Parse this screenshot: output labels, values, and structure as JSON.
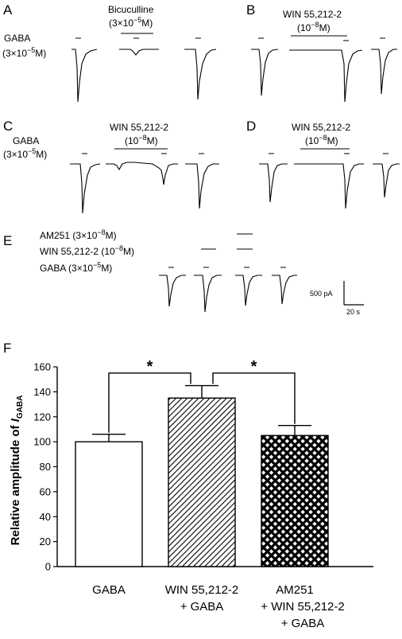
{
  "panels": {
    "a": "A",
    "b": "B",
    "c": "C",
    "d": "D",
    "e": "E",
    "f": "F"
  },
  "a": {
    "gaba_line1": "GABA",
    "gaba_line2": "(3×10",
    "gaba_exp": "−5",
    "gaba_end": "M)",
    "bic_line1": "Bicuculline",
    "bic_line2": "(3×10",
    "bic_exp": "−5",
    "bic_end": "M)"
  },
  "b": {
    "win_line1": "WIN  55,212-2",
    "win_line2": "(10",
    "win_exp": "−8",
    "win_end": "M)"
  },
  "c": {
    "gaba_line1": "GABA",
    "gaba_line2": "(3×10",
    "gaba_exp": "−5",
    "gaba_end": "M)",
    "win_line1": "WIN  55,212-2",
    "win_line2": "(10",
    "win_exp": "−8",
    "win_end": "M)"
  },
  "d": {
    "win_line1": "WIN  55,212-2",
    "win_line2": "(10",
    "win_exp": "−8",
    "win_end": "M)"
  },
  "e": {
    "am251": "AM251 (3×10",
    "am251_exp": "−8",
    "am251_end": "M)",
    "win": "WIN  55,212-2 (10",
    "win_exp": "−8",
    "win_end": "M)",
    "gaba": "GABA (3×10",
    "gaba_exp": "−5",
    "gaba_end": "M)",
    "scale_y": "500 pA",
    "scale_x": "20 s"
  },
  "chart_data": {
    "type": "bar",
    "categories": [
      "GABA",
      "WIN 55,212-2\n+ GABA",
      "AM251\n+ WIN 55,212-2\n+ GABA"
    ],
    "category_lines": [
      [
        "GABA"
      ],
      [
        "WIN 55,212-2",
        "+ GABA"
      ],
      [
        "AM251",
        "+ WIN 55,212-2",
        "+ GABA"
      ]
    ],
    "values": [
      100,
      135,
      105
    ],
    "errors": [
      6,
      10,
      8
    ],
    "fills": [
      "open",
      "diagonal-hatch",
      "crosshatch"
    ],
    "ylabel_main": "Relative amplitude of ",
    "ylabel_italic": "I",
    "ylabel_sub": "GABA",
    "ylim": [
      0,
      160
    ],
    "yticks": [
      0,
      20,
      40,
      60,
      80,
      100,
      120,
      140,
      160
    ],
    "significance": [
      {
        "from": 0,
        "to": 1,
        "mark": "*"
      },
      {
        "from": 1,
        "to": 2,
        "mark": "*"
      }
    ]
  }
}
